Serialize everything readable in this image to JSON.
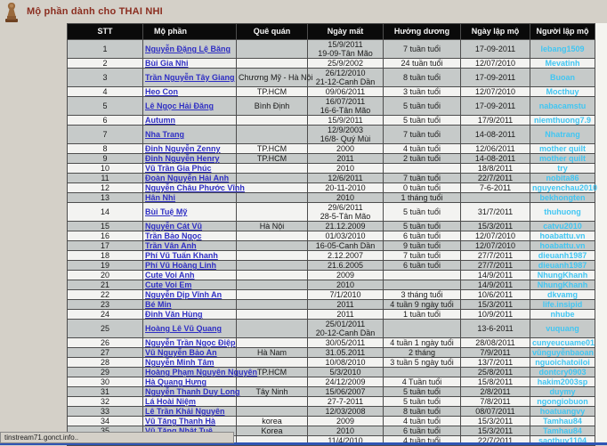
{
  "page": {
    "title": "Mộ phần dành cho THAI NHI"
  },
  "colors": {
    "title": "#8b2e20",
    "header_bg": "#0a0a0a",
    "link": "#2f2fc4",
    "username": "#41c6f2",
    "row_alt": "#c6cac9",
    "bottom_strip": "#2f55b4"
  },
  "status_bar": {
    "text": "tinstream71.gonct.info.."
  },
  "table": {
    "headers": [
      "STT",
      "Mộ phần",
      "Quê quán",
      "Ngày mất",
      "Hưởng dương",
      "Ngày lập mộ",
      "Người lập mộ"
    ],
    "rows": [
      {
        "stt": "1",
        "name": "Nguyễn Đặng Lệ Băng",
        "que_quan": "",
        "ngay_mat": "15/9/2011\n19-09-Tân Mão",
        "huong_duong": "7 tuần tuổi",
        "ngay_lap_mo": "17-09-2011",
        "nguoi_lap_mo": "lebang1509"
      },
      {
        "stt": "2",
        "name": "Bùi Gia Nhi",
        "que_quan": "",
        "ngay_mat": "25/9/2002",
        "huong_duong": "24 tuần tuổi",
        "ngay_lap_mo": "12/07/2010",
        "nguoi_lap_mo": "Mevatinh"
      },
      {
        "stt": "3",
        "name": "Trần Nguyễn Tây Giang",
        "que_quan": "Chương Mỹ - Hà Nội",
        "ngay_mat": "26/12/2010\n21-12-Canh Dần",
        "huong_duong": "8 tuần tuổi",
        "ngay_lap_mo": "17-09-2011",
        "nguoi_lap_mo": "Buoan"
      },
      {
        "stt": "4",
        "name": "Heo Con",
        "que_quan": "TP.HCM",
        "ngay_mat": "09/06/2011",
        "huong_duong": "3 tuần tuổi",
        "ngay_lap_mo": "12/07/2010",
        "nguoi_lap_mo": "Mocthuy"
      },
      {
        "stt": "5",
        "name": "Lê Ngọc Hải Đăng",
        "que_quan": "Bình Định",
        "ngay_mat": "16/07/2011\n16-6-Tân Mão",
        "huong_duong": "5 tuần tuổi",
        "ngay_lap_mo": "17-09-2011",
        "nguoi_lap_mo": "nabacamstu"
      },
      {
        "stt": "6",
        "name": "Autumn",
        "que_quan": "",
        "ngay_mat": "15/9/2011",
        "huong_duong": "5 tuần tuổi",
        "ngay_lap_mo": "17/9/2011",
        "nguoi_lap_mo": "niemthuong7.9"
      },
      {
        "stt": "7",
        "name": "Nha Trang",
        "que_quan": "",
        "ngay_mat": "12/9/2003\n16/8- Quý Mùi",
        "huong_duong": "7 tuần tuổi",
        "ngay_lap_mo": "14-08-2011",
        "nguoi_lap_mo": "Nhatrang"
      },
      {
        "stt": "8",
        "name": "Đinh Nguyễn Zenny",
        "que_quan": "TP.HCM",
        "ngay_mat": "2000",
        "huong_duong": "4 tuần tuổi",
        "ngay_lap_mo": "12/06/2011",
        "nguoi_lap_mo": "mother quilt"
      },
      {
        "stt": "9",
        "name": "Đinh Nguyễn Henry",
        "que_quan": "TP.HCM",
        "ngay_mat": "2011",
        "huong_duong": "2 tuần tuổi",
        "ngay_lap_mo": "14-08-2011",
        "nguoi_lap_mo": "mother quilt"
      },
      {
        "stt": "10",
        "name": "Vũ Trần Gia Phúc",
        "que_quan": "",
        "ngay_mat": "2010",
        "huong_duong": "",
        "ngay_lap_mo": "18/8/2011",
        "nguoi_lap_mo": "try"
      },
      {
        "stt": "11",
        "name": "Đoàn Nguyễn Hải Anh",
        "que_quan": "",
        "ngay_mat": "12/6/2011",
        "huong_duong": "7 tuần tuổi",
        "ngay_lap_mo": "22/7/2011",
        "nguoi_lap_mo": "nobita86"
      },
      {
        "stt": "12",
        "name": "Nguyễn Châu Phước Vĩnh",
        "que_quan": "",
        "ngay_mat": "20-11-2010",
        "huong_duong": "0 tuần tuổi",
        "ngay_lap_mo": "7-6-2011",
        "nguoi_lap_mo": "nguyenchau2010"
      },
      {
        "stt": "13",
        "name": "Hân Nhi",
        "que_quan": "",
        "ngay_mat": "2010",
        "huong_duong": "1 tháng tuổi",
        "ngay_lap_mo": "",
        "nguoi_lap_mo": "bekhongten"
      },
      {
        "stt": "14",
        "name": "Bùi Tuệ Mỹ",
        "que_quan": "",
        "ngay_mat": "29/6/2011\n28-5-Tân Mão",
        "huong_duong": "5 tuần tuổi",
        "ngay_lap_mo": "31/7/2011",
        "nguoi_lap_mo": "thuhuong"
      },
      {
        "stt": "15",
        "name": "Nguyễn Cát Vũ",
        "que_quan": "Hà Nội",
        "ngay_mat": "21.12.2009",
        "huong_duong": "5 tuần tuổi",
        "ngay_lap_mo": "15/3/2011",
        "nguoi_lap_mo": "catvu2010"
      },
      {
        "stt": "16",
        "name": "Trần Bảo Ngọc",
        "que_quan": "",
        "ngay_mat": "01/03/2010",
        "huong_duong": "6 tuần tuổi",
        "ngay_lap_mo": "12/07/2010",
        "nguoi_lap_mo": "hoabattu.vn"
      },
      {
        "stt": "17",
        "name": "Trần Vân Anh",
        "que_quan": "",
        "ngay_mat": "16-05-Canh Dần",
        "huong_duong": "9 tuần tuổi",
        "ngay_lap_mo": "12/07/2010",
        "nguoi_lap_mo": "hoabattu.vn"
      },
      {
        "stt": "18",
        "name": "Phí Vũ Tuấn Khanh",
        "que_quan": "",
        "ngay_mat": "2.12.2007",
        "huong_duong": "7 tuần tuổi",
        "ngay_lap_mo": "27/7/2011",
        "nguoi_lap_mo": "dieuanh1987"
      },
      {
        "stt": "19",
        "name": "Phí Vũ Hoàng Linh",
        "que_quan": "",
        "ngay_mat": "21.6.2005",
        "huong_duong": "6 tuần tuổi",
        "ngay_lap_mo": "27/7/2011",
        "nguoi_lap_mo": "dieuanh1987"
      },
      {
        "stt": "20",
        "name": "Cute Voi Anh",
        "que_quan": "",
        "ngay_mat": "2009",
        "huong_duong": "",
        "ngay_lap_mo": "14/9/2011",
        "nguoi_lap_mo": "NhungKhanh"
      },
      {
        "stt": "21",
        "name": "Cute Voi Em",
        "que_quan": "",
        "ngay_mat": "2010",
        "huong_duong": "",
        "ngay_lap_mo": "14/9/2011",
        "nguoi_lap_mo": "NhungKhanh"
      },
      {
        "stt": "22",
        "name": "Nguyễn Dịp Vĩnh An",
        "que_quan": "",
        "ngay_mat": "7/1/2010",
        "huong_duong": "3 tháng tuổi",
        "ngay_lap_mo": "10/6/2011",
        "nguoi_lap_mo": "dkvamg"
      },
      {
        "stt": "23",
        "name": "Bé Min",
        "que_quan": "",
        "ngay_mat": "2011",
        "huong_duong": "4 tuần 9 ngày tuổi",
        "ngay_lap_mo": "15/3/2011",
        "nguoi_lap_mo": "life.insipid"
      },
      {
        "stt": "24",
        "name": "Đinh Văn Hùng",
        "que_quan": "",
        "ngay_mat": "2011",
        "huong_duong": "1 tuần tuổi",
        "ngay_lap_mo": "10/9/2011",
        "nguoi_lap_mo": "nhube"
      },
      {
        "stt": "25",
        "name": "Hoàng Lê Vũ Quang",
        "que_quan": "",
        "ngay_mat": "25/01/2011\n20-12-Canh Dần",
        "huong_duong": "",
        "ngay_lap_mo": "13-6-2011",
        "nguoi_lap_mo": "vuquang"
      },
      {
        "stt": "26",
        "name": "Nguyễn Trần Ngọc Điệp",
        "que_quan": "",
        "ngay_mat": "30/05/2011",
        "huong_duong": "4 tuần 1 ngày tuổi",
        "ngay_lap_mo": "28/08/2011",
        "nguoi_lap_mo": "cunyeucuame01"
      },
      {
        "stt": "27",
        "name": "Vũ Nguyễn Bảo An",
        "que_quan": "Hà Nam",
        "ngay_mat": "31.05.2011",
        "huong_duong": "2 tháng",
        "ngay_lap_mo": "7/9/2011",
        "nguoi_lap_mo": "vũnguyễnbaoan"
      },
      {
        "stt": "28",
        "name": "Nguyễn Minh Tâm",
        "que_quan": "",
        "ngay_mat": "10/08/2010",
        "huong_duong": "3 tuần 5 ngày tuổi",
        "ngay_lap_mo": "13/7/2011",
        "nguoi_lap_mo": "nguoichatoiloi"
      },
      {
        "stt": "29",
        "name": "Hoàng Phạm Nguyên Nguyên",
        "que_quan": "TP.HCM",
        "ngay_mat": "5/3/2010",
        "huong_duong": "",
        "ngay_lap_mo": "25/8/2011",
        "nguoi_lap_mo": "dontcry0903"
      },
      {
        "stt": "30",
        "name": "Hà Quang Hưng",
        "que_quan": "",
        "ngay_mat": "24/12/2009",
        "huong_duong": "4 Tuần tuổi",
        "ngay_lap_mo": "15/8/2011",
        "nguoi_lap_mo": "hakim2003sp"
      },
      {
        "stt": "31",
        "name": "Nguyễn Thanh Duy Long",
        "que_quan": "Tây Ninh",
        "ngay_mat": "15/06/2007",
        "huong_duong": "5 tuần tuổi",
        "ngay_lap_mo": "2/8/2011",
        "nguoi_lap_mo": "duymy"
      },
      {
        "stt": "32",
        "name": "Lá Hoài Niệm",
        "que_quan": "",
        "ngay_mat": "27-7-2011",
        "huong_duong": "5 tuần tuổi",
        "ngay_lap_mo": "7/8/2011",
        "nguoi_lap_mo": "ngongiobuon"
      },
      {
        "stt": "33",
        "name": "Lê Trần Khải Nguyên",
        "que_quan": "",
        "ngay_mat": "12/03/2008",
        "huong_duong": "8 tuần tuổi",
        "ngay_lap_mo": "08/07/2011",
        "nguoi_lap_mo": "hoatuangvy"
      },
      {
        "stt": "34",
        "name": "Vũ Tăng Thanh Hà",
        "que_quan": "korea",
        "ngay_mat": "2009",
        "huong_duong": "4 tuần tuổi",
        "ngay_lap_mo": "15/3/2011",
        "nguoi_lap_mo": "Tamhau84"
      },
      {
        "stt": "35",
        "name": "Vũ Tăng Nhật Tuệ",
        "que_quan": "Korea",
        "ngay_mat": "2010",
        "huong_duong": "6 tuần tuổi",
        "ngay_lap_mo": "15/3/2011",
        "nguoi_lap_mo": "Tamhau84"
      },
      {
        "stt": "",
        "name": "",
        "que_quan": "",
        "ngay_mat": "11/4/2010",
        "huong_duong": "4 tuần tuổi",
        "ngay_lap_mo": "22/7/2011",
        "nguoi_lap_mo": "saothuy1104"
      }
    ]
  }
}
